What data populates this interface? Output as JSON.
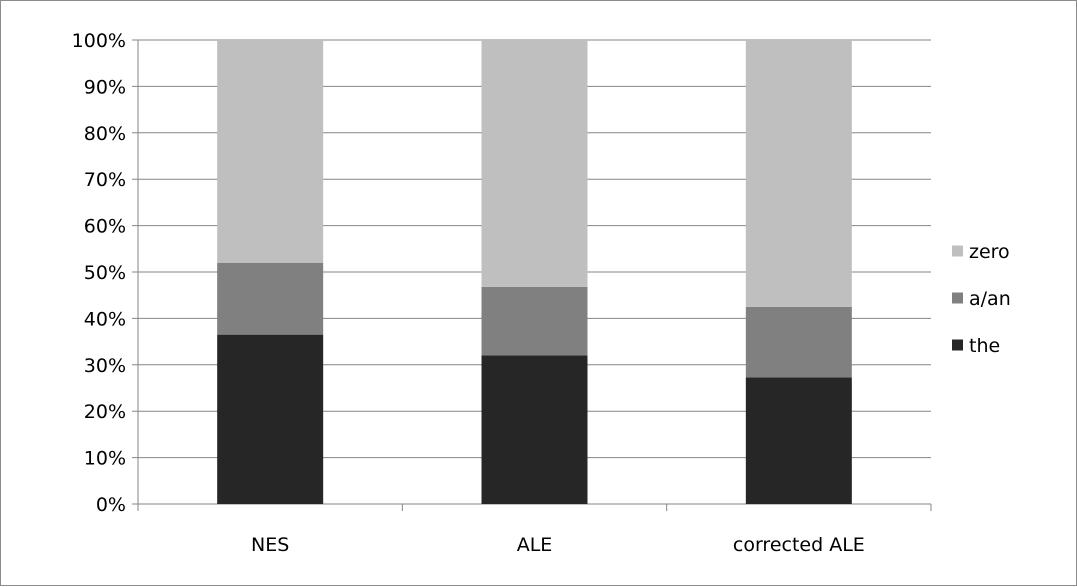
{
  "chart_data": {
    "type": "bar",
    "stacked": true,
    "percent_stacked": true,
    "categories": [
      "NES",
      "ALE",
      "corrected ALE"
    ],
    "series": [
      {
        "name": "the",
        "values": [
          36.5,
          32,
          27.3
        ],
        "color": "#262626"
      },
      {
        "name": "a/an",
        "values": [
          15.5,
          14.8,
          15.2
        ],
        "color": "#808080"
      },
      {
        "name": "zero",
        "values": [
          48,
          53.2,
          57.5
        ],
        "color": "#bfbfbf"
      }
    ],
    "y_ticks": [
      "0%",
      "10%",
      "20%",
      "30%",
      "40%",
      "50%",
      "60%",
      "70%",
      "80%",
      "90%",
      "100%"
    ],
    "ylim": [
      0,
      100
    ],
    "grid": true,
    "legend_position": "right",
    "legend_order": [
      "zero",
      "a/an",
      "the"
    ],
    "title": "",
    "xlabel": "",
    "ylabel": ""
  }
}
